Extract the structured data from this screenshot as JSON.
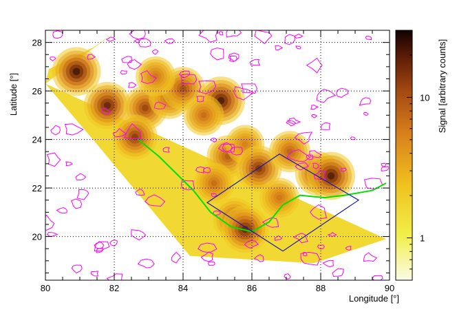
{
  "chart_data": {
    "type": "heatmap",
    "xlabel": "Longitude [°]",
    "ylabel": "Latitude [°]",
    "colorbar_label": "Signal [arbitrary counts]",
    "xlim": [
      80,
      90
    ],
    "ylim": [
      18.2,
      28.5
    ],
    "x_ticks": [
      "80",
      "82",
      "84",
      "86",
      "88",
      "90"
    ],
    "y_ticks": [
      "20",
      "22",
      "24",
      "26",
      "28"
    ],
    "colorbar_scale": "log",
    "colorbar_range": [
      0.5,
      30
    ],
    "colorbar_ticks": [
      "1",
      "10"
    ],
    "grid": "dotted",
    "swath_corners": [
      [
        82.1,
        28.5
      ],
      [
        81.4,
        27.8
      ],
      [
        80.1,
        26.9
      ],
      [
        80.0,
        26.3
      ],
      [
        89.9,
        19.9
      ],
      [
        87.8,
        18.9
      ],
      [
        84.2,
        19.2
      ],
      [
        81.5,
        23.8
      ],
      [
        80.0,
        26.3
      ]
    ],
    "hotspots": [
      {
        "lon": 80.9,
        "lat": 26.8,
        "value": 28
      },
      {
        "lon": 81.8,
        "lat": 25.4,
        "value": 22
      },
      {
        "lon": 82.9,
        "lat": 25.3,
        "value": 14
      },
      {
        "lon": 83.6,
        "lat": 25.7,
        "value": 9
      },
      {
        "lon": 84.0,
        "lat": 26.1,
        "value": 12
      },
      {
        "lon": 85.1,
        "lat": 25.6,
        "value": 26
      },
      {
        "lon": 84.6,
        "lat": 25.0,
        "value": 8
      },
      {
        "lon": 85.3,
        "lat": 23.3,
        "value": 10
      },
      {
        "lon": 85.8,
        "lat": 23.8,
        "value": 6
      },
      {
        "lon": 86.2,
        "lat": 22.8,
        "value": 18
      },
      {
        "lon": 87.1,
        "lat": 23.5,
        "value": 9
      },
      {
        "lon": 87.9,
        "lat": 22.6,
        "value": 14
      },
      {
        "lon": 88.3,
        "lat": 22.5,
        "value": 25
      },
      {
        "lon": 84.9,
        "lat": 22.2,
        "value": 8
      },
      {
        "lon": 85.5,
        "lat": 20.7,
        "value": 12
      },
      {
        "lon": 85.8,
        "lat": 20.3,
        "value": 22
      },
      {
        "lon": 86.8,
        "lat": 21.6,
        "value": 7
      },
      {
        "lon": 82.6,
        "lat": 24.1,
        "value": 16
      },
      {
        "lon": 83.2,
        "lat": 26.6,
        "value": 7
      }
    ],
    "region_box": [
      [
        84.7,
        21.4
      ],
      [
        86.8,
        23.4
      ],
      [
        89.1,
        21.5
      ],
      [
        86.9,
        19.4
      ]
    ]
  },
  "colors": {
    "region_box": "#1a1aa8",
    "border_contours": "#ff00ff",
    "coastline": "#00e000",
    "grid": "#000000"
  }
}
